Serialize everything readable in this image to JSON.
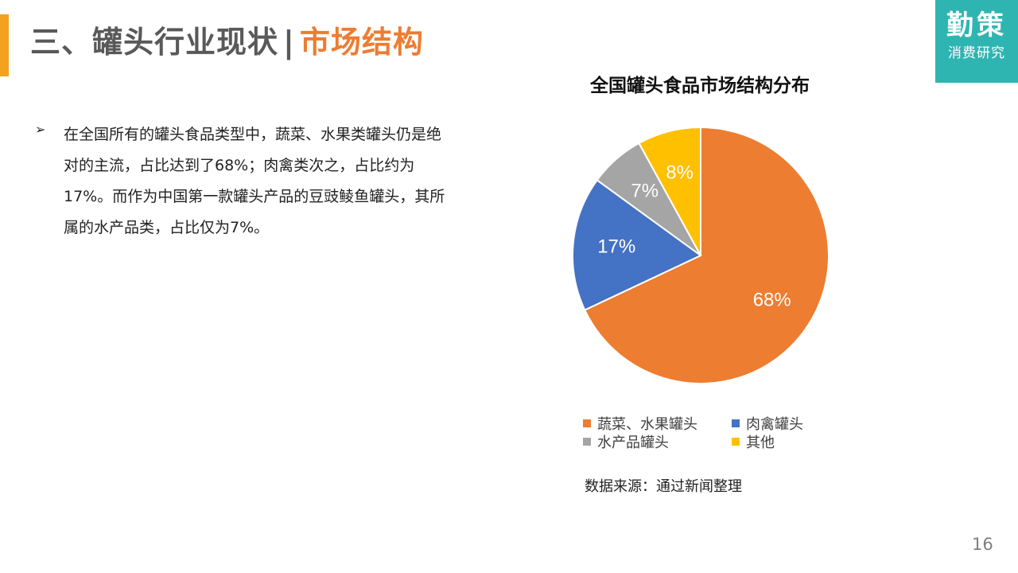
{
  "header": {
    "title_main": "三、罐头行业现状",
    "title_sep": "|",
    "title_sub": "市场结构"
  },
  "logo": {
    "main": "勤策",
    "sub": "消费研究"
  },
  "bullet": {
    "marker": "➢",
    "text": "在全国所有的罐头食品类型中，蔬菜、水果类罐头仍是绝对的主流，占比达到了68%；肉禽类次之，占比约为17%。而作为中国第一款罐头产品的豆豉鲮鱼罐头，其所属的水产品类，占比仅为7%。"
  },
  "chart_data": {
    "type": "pie",
    "title": "全国罐头食品市场结构分布",
    "categories": [
      "蔬菜、水果罐头",
      "肉禽罐头",
      "水产品罐头",
      "其他"
    ],
    "values": [
      68,
      17,
      7,
      8
    ],
    "labels": [
      "68%",
      "17%",
      "7%",
      "8%"
    ],
    "colors": [
      "#ed7d31",
      "#4472c4",
      "#a5a5a5",
      "#ffc000"
    ],
    "legend_position": "bottom"
  },
  "source": "数据来源：通过新闻整理",
  "page_number": "16"
}
